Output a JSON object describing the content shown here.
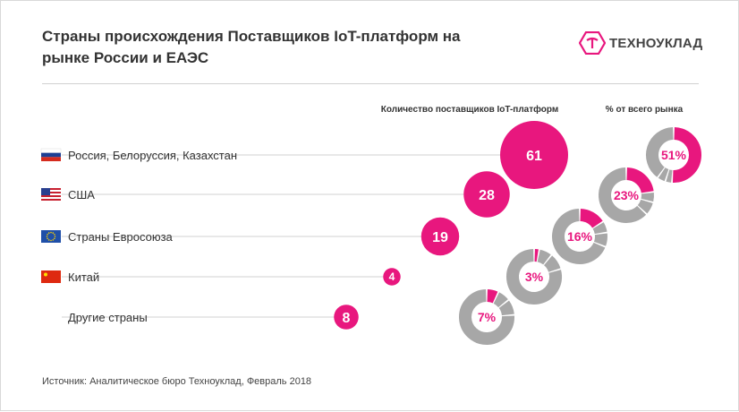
{
  "header": {
    "title": "Страны происхождения Поставщиков IoT-платформ на рынке России и ЕАЭС",
    "logo_text": "ТЕХНОУКЛАД"
  },
  "source": "Источник: Аналитическое бюро Техноуклад, Февраль 2018",
  "colors": {
    "accent": "#e8177e",
    "gray": "#a7a7a7",
    "line": "#d9d9d9",
    "text": "#333333"
  },
  "chart_data": {
    "type": "bubble",
    "column_headers": {
      "count": "Количество поставщиков IoT-платформ",
      "share": "% от всего рынка"
    },
    "categories": [
      {
        "label": "Россия, Белоруссия, Казахстан",
        "flag": "russia-flag-icon",
        "count": 61,
        "share": 51,
        "share_label": "51%"
      },
      {
        "label": "США",
        "flag": "usa-flag-icon",
        "count": 28,
        "share": 23,
        "share_label": "23%"
      },
      {
        "label": "Страны Евросоюза",
        "flag": "eu-flag-icon",
        "count": 19,
        "share": 16,
        "share_label": "16%"
      },
      {
        "label": "Китай",
        "flag": "china-flag-icon",
        "count": 4,
        "share": 3,
        "share_label": "3%"
      },
      {
        "label": "Другие страны",
        "flag": "",
        "count": 8,
        "share": 7,
        "share_label": "7%"
      }
    ]
  }
}
